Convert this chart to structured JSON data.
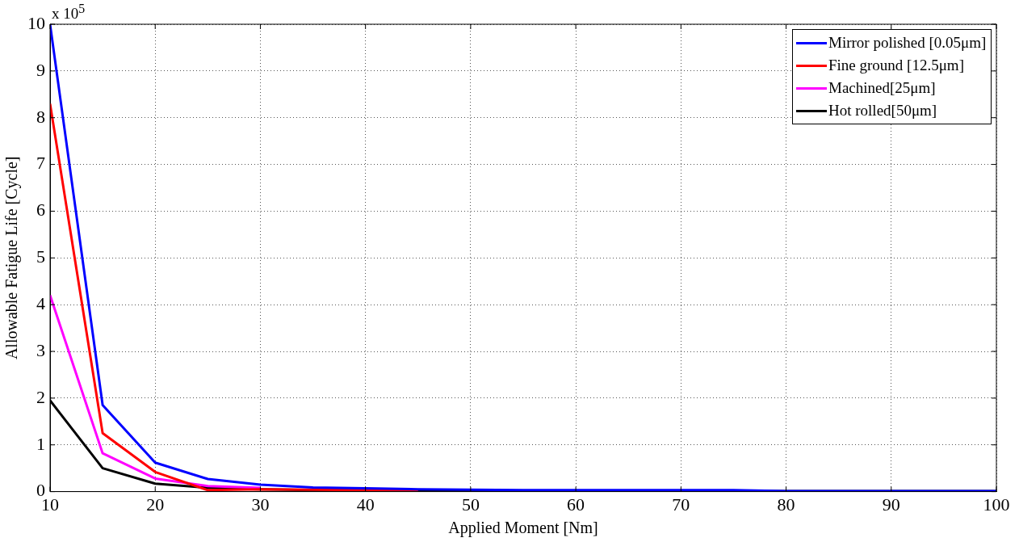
{
  "chart_data": {
    "type": "line",
    "xlabel": "Applied Moment [Nm]",
    "ylabel": "Allowable Fatigue Life [Cycle]",
    "annotations": [
      "x 10$^{5}$"
    ],
    "x": [
      10,
      15,
      20,
      25,
      30,
      35,
      40,
      45,
      50,
      55,
      60,
      65,
      70,
      75,
      80,
      85,
      90,
      95,
      100
    ],
    "series": [
      {
        "name": "Mirror polished [0.05μm]",
        "color": "#0000ff",
        "values": [
          10,
          1.85,
          0.62,
          0.27,
          0.15,
          0.09,
          0.07,
          0.05,
          0.04,
          0.03,
          0.03,
          0.03,
          0.03,
          0.03,
          0.01,
          0.01,
          0.01,
          0.01,
          0.01
        ]
      },
      {
        "name": "Fine ground [12.5μm]",
        "color": "#ff0000",
        "values": [
          8.3,
          1.25,
          0.42,
          0.03,
          0.05,
          0.04,
          0.03,
          0.03,
          null,
          null,
          null,
          null,
          null,
          null,
          null,
          null,
          null,
          null,
          null
        ]
      },
      {
        "name": "Machined[25μm]",
        "color": "#ff00ff",
        "values": [
          4.2,
          0.82,
          0.28,
          0.12,
          0.08,
          null,
          null,
          null,
          null,
          null,
          null,
          null,
          null,
          null,
          null,
          null,
          null,
          null,
          null
        ]
      },
      {
        "name": "Hot rolled[50μm]",
        "color": "#000000",
        "values": [
          1.95,
          0.5,
          0.17,
          0.08,
          0.05,
          0.03,
          0.02,
          0.02,
          0.01,
          0.01,
          0.01,
          0.01,
          0.01,
          0.01,
          0.01,
          0.01,
          0.01,
          0.01,
          0.01
        ]
      }
    ],
    "xlim": [
      10,
      100
    ],
    "xticks": [
      10,
      20,
      30,
      40,
      50,
      60,
      70,
      80,
      90,
      100
    ],
    "ylim": [
      0,
      10
    ],
    "yticks": [
      0,
      1,
      2,
      3,
      4,
      5,
      6,
      7,
      8,
      9,
      10
    ],
    "grid": true,
    "legend": "top right",
    "marker": "none",
    "line_style": "solid"
  }
}
